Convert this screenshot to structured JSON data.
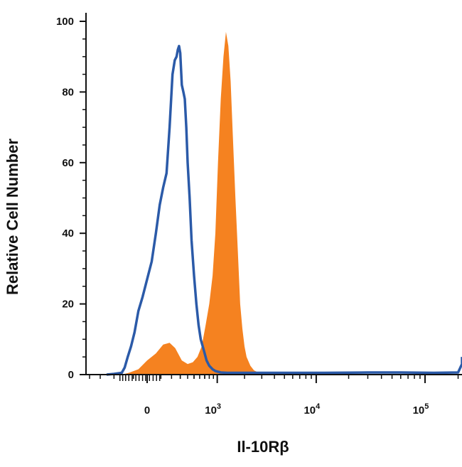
{
  "chart_data": {
    "type": "area",
    "xlabel": "Il-10Rβ",
    "ylabel": "Relative Cell Number",
    "x_scale": "biexponential",
    "x_tick_labels": [
      "0",
      "10",
      "10",
      "10"
    ],
    "x_tick_exponents": [
      "",
      "3",
      "4",
      "5"
    ],
    "x_tick_values": [
      0,
      1000,
      10000,
      100000
    ],
    "y_tick_labels": [
      "0",
      "20",
      "40",
      "60",
      "80",
      "100"
    ],
    "y_tick_values": [
      0,
      20,
      40,
      60,
      80,
      100
    ],
    "ylim": [
      0,
      100
    ],
    "xlim": [
      -500,
      260000
    ],
    "grid": false,
    "legend": "none",
    "series": [
      {
        "style": "filled",
        "color": "#f58220",
        "x": [
          -210,
          -140,
          -60,
          0,
          60,
          120,
          180,
          240,
          320,
          400,
          480,
          560,
          640,
          720,
          800,
          880,
          950,
          1020,
          1100,
          1180,
          1260,
          1340,
          1420,
          1500,
          1600,
          1700,
          1800,
          1900,
          2000,
          2100,
          2300,
          2500,
          2800,
          3200,
          3600,
          4200,
          5000,
          7000,
          10000,
          20000,
          50000,
          100000,
          200000,
          260000
        ],
        "y": [
          0,
          0.5,
          1.5,
          4,
          6,
          8.5,
          9,
          7.5,
          4,
          3,
          3.5,
          5,
          8,
          14,
          20,
          28,
          40,
          60,
          78,
          90,
          97,
          93,
          83,
          68,
          50,
          35,
          20,
          13,
          8,
          5,
          2.5,
          1.2,
          0.5,
          0.3,
          0.2,
          0.2,
          0.2,
          0.2,
          0.2,
          0.2,
          0.2,
          0.2,
          0.2,
          0.2
        ]
      },
      {
        "style": "line",
        "color": "#2b5aa8",
        "x": [
          -400,
          -300,
          -210,
          -180,
          -150,
          -120,
          -90,
          -60,
          -30,
          0,
          30,
          60,
          90,
          120,
          150,
          180,
          210,
          235,
          255,
          270,
          285,
          300,
          320,
          340,
          360,
          380,
          400,
          430,
          460,
          500,
          540,
          580,
          620,
          680,
          740,
          800,
          880,
          950,
          1100,
          1300,
          1700,
          2500,
          4000,
          7000,
          12000,
          30000,
          60000,
          120000,
          200000,
          240000,
          260000
        ],
        "y": [
          0,
          0.2,
          0.5,
          2,
          5,
          8,
          12,
          18,
          22,
          27,
          32,
          40,
          48,
          53,
          57,
          70,
          85,
          89,
          90,
          92,
          93,
          91,
          82,
          80,
          78,
          70,
          60,
          50,
          38,
          28,
          20,
          14,
          10,
          7,
          4,
          2.5,
          1.5,
          1,
          0.6,
          0.5,
          0.5,
          0.5,
          0.5,
          0.5,
          0.5,
          0.6,
          0.6,
          0.5,
          0.6,
          3,
          5
        ]
      }
    ]
  }
}
